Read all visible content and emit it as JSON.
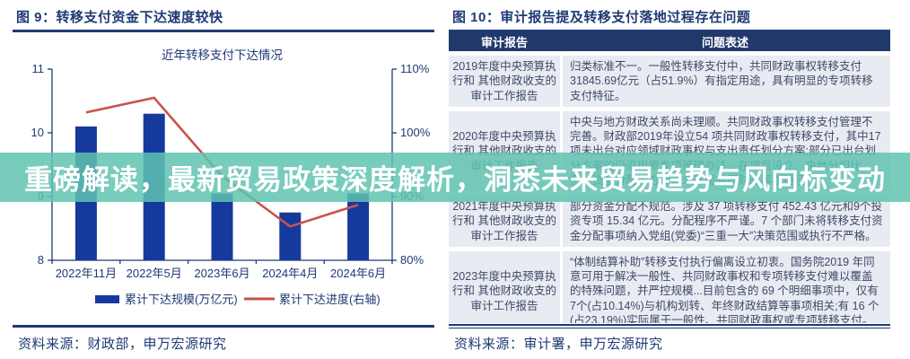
{
  "banner": {
    "text": "重磅解读，最新贸易政策深度解析，洞悉未来贸易趋势与风向标变动"
  },
  "figure9": {
    "title": "图 9：转移支付资金下达速度较快",
    "source": "资料来源：财政部，申万宏源研究"
  },
  "figure10": {
    "title": "图 10：审计报告提及转移支付落地过程存在问题",
    "source": "资料来源：审计署，申万宏源研究"
  },
  "colors": {
    "accent_navy": "#1F3A75",
    "bar_blue": "#16399E",
    "line_red": "#C9524E",
    "table_header_navy": "#21386B",
    "table_row_bg": "#E9EBF3",
    "banner_teal": "rgba(95,195,176,0.85)"
  },
  "chart_data": [
    {
      "type": "bar",
      "subtype": "bar+line combo",
      "title": "近年转移支付下达情况",
      "categories": [
        "2022年11月",
        "2022年5月",
        "2023年6月",
        "2024年4月",
        "2024年6月"
      ],
      "series": [
        {
          "name": "累计下达规模(万亿元)",
          "type": "bar",
          "axis": "left",
          "color": "#16399E",
          "values": [
            10.1,
            10.3,
            9.05,
            8.75,
            9.05
          ]
        },
        {
          "name": "累计下达进度(右轴)",
          "type": "line",
          "axis": "right",
          "color": "#C9524E",
          "values": [
            103.2,
            105.5,
            93.2,
            85.3,
            88.7
          ]
        }
      ],
      "left_axis": {
        "min": 8,
        "max": 11,
        "ticks": [
          8,
          9,
          10,
          11
        ]
      },
      "right_axis": {
        "min": 80,
        "max": 110,
        "tick_values": [
          80,
          90,
          100,
          110
        ],
        "ticks": [
          "80%",
          "90%",
          "100%",
          "110%"
        ]
      },
      "grid": false,
      "legend_position": "bottom"
    },
    {
      "type": "table",
      "columns": [
        "审计报告",
        "问题表述"
      ],
      "rows": [
        [
          "2019年度中央预算执行和 其他财政收支的审计工作报告",
          "归类标准不一。一般性转移支付中，共同财政事权转移支付 31845.69亿元（占51.9%）有指定用途，具有明显的专项转移支付特征。"
        ],
        [
          "2020年度中央预算执行和 其他财政收支的审计工作报告",
          "中央与地方财政关系尚未理顺。共同财政事权转移支付管理不完善。财政部2019年设立54 项共同财政事权转移支付，其中17 项未出台对应领域财政事权与支出责任划分方案;部分已出台划分方案的仍沿用原专项管理办法，在项目设立、央地分担比例、资金分配等方面，未体现共同财政事权特征。"
        ],
        [
          "2021年度中央预算执行和 其他财政收支的审计工作报告",
          "部分资金分配不规范。涉及 37 项转移支付 452.43 亿元和9个投资专项 15.34 亿元。分配程序不严谨。7 个部门未将转移支付资金分配事项纳入党组(党委)“三重一大”决策范围或执行不严格。"
        ],
        [
          "2023年度中央预算执行和 其他财政收支的审计工作报告",
          "“体制结算补助”转移支付执行偏离设立初衷。国务院2019 年同意可用于解决一般性、共同财政事权和专项转移支付难以覆盖的特殊问题，并严控规模...目前包含的 69 个明细事项中，仅有7个(占10.14%)与机构划转、年终财政结算等事项相关;有 16 个(占23.19%)实际属于一般性、共同财政事权或专项转移支付。"
        ]
      ]
    }
  ]
}
